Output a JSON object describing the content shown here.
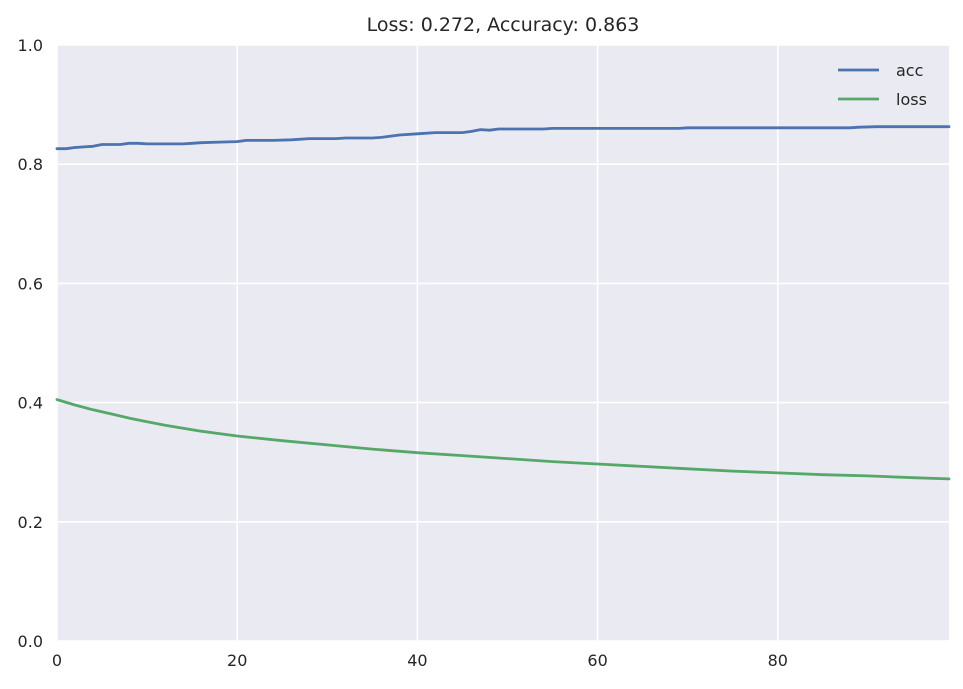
{
  "chart_data": {
    "type": "line",
    "title": "Loss: 0.272, Accuracy: 0.863",
    "xlabel": "",
    "ylabel": "",
    "xlim": [
      0,
      99
    ],
    "ylim": [
      0.0,
      1.0
    ],
    "x_ticks": [
      0,
      20,
      40,
      60,
      80
    ],
    "x_tick_labels": [
      "0",
      "20",
      "40",
      "60",
      "80"
    ],
    "y_ticks": [
      0.0,
      0.2,
      0.4,
      0.6,
      0.8,
      1.0
    ],
    "y_tick_labels": [
      "0.0",
      "0.2",
      "0.4",
      "0.6",
      "0.8",
      "1.0"
    ],
    "grid": true,
    "legend_position": "top-right",
    "colors": {
      "background": "#EAEAF2",
      "grid": "#FFFFFF",
      "acc": "#4C72B0",
      "loss": "#55A868"
    },
    "series": [
      {
        "name": "acc",
        "x": [
          0,
          1,
          2,
          3,
          4,
          5,
          6,
          7,
          8,
          9,
          10,
          12,
          14,
          15,
          16,
          18,
          20,
          21,
          24,
          26,
          28,
          31,
          32,
          35,
          36,
          38,
          40,
          42,
          45,
          46,
          47,
          48,
          49,
          50,
          54,
          55,
          60,
          65,
          69,
          70,
          75,
          80,
          85,
          88,
          89,
          91,
          95,
          99
        ],
        "y": [
          0.826,
          0.826,
          0.828,
          0.829,
          0.83,
          0.833,
          0.833,
          0.833,
          0.835,
          0.835,
          0.834,
          0.834,
          0.834,
          0.835,
          0.836,
          0.837,
          0.838,
          0.84,
          0.84,
          0.841,
          0.843,
          0.843,
          0.844,
          0.844,
          0.845,
          0.849,
          0.851,
          0.853,
          0.853,
          0.855,
          0.858,
          0.857,
          0.859,
          0.859,
          0.859,
          0.86,
          0.86,
          0.86,
          0.86,
          0.861,
          0.861,
          0.861,
          0.861,
          0.861,
          0.862,
          0.863,
          0.863,
          0.863
        ]
      },
      {
        "name": "loss",
        "x": [
          0,
          2,
          4,
          6,
          8,
          10,
          12,
          14,
          16,
          18,
          20,
          25,
          30,
          35,
          40,
          45,
          50,
          55,
          60,
          65,
          70,
          75,
          80,
          85,
          90,
          95,
          99
        ],
        "y": [
          0.405,
          0.396,
          0.388,
          0.381,
          0.374,
          0.368,
          0.362,
          0.357,
          0.352,
          0.348,
          0.344,
          0.336,
          0.329,
          0.322,
          0.316,
          0.311,
          0.306,
          0.301,
          0.297,
          0.293,
          0.289,
          0.285,
          0.282,
          0.279,
          0.277,
          0.274,
          0.272
        ]
      }
    ]
  }
}
